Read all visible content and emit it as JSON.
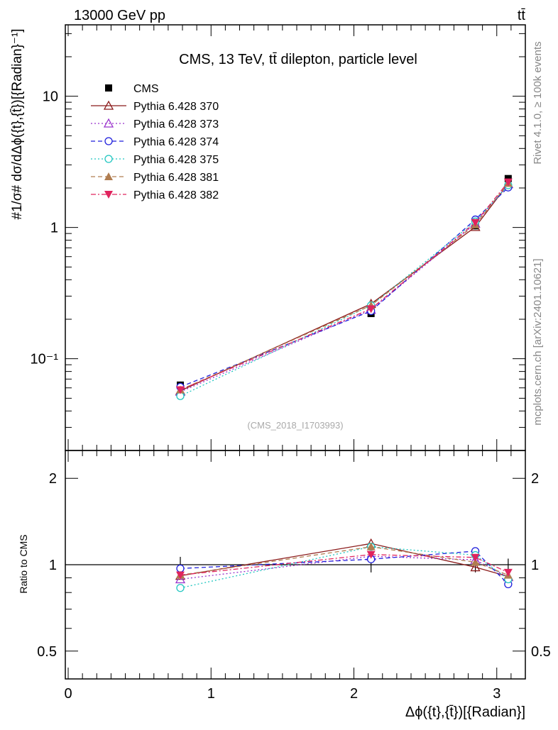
{
  "header": {
    "left": "13000 GeV pp",
    "right": "tt̄"
  },
  "side_labels": {
    "rivet": "Rivet 4.1.0, ≥ 100k events",
    "mcplots": "mcplots.cern.ch [arXiv:2401.10621]"
  },
  "chart_data": [
    {
      "type": "line",
      "yscale": "log",
      "title": "CMS, 13 TeV, tt̄ dilepton, particle level",
      "watermark": "(CMS_2018_I1703993)",
      "ylabel": "#1/σ# dσ/dΔϕ({t},{t̄})[{Radian}⁻¹]",
      "xlim": [
        -0.02,
        3.2
      ],
      "ylim": [
        0.02,
        35
      ],
      "yticks": [
        {
          "v": 10,
          "label": "10"
        },
        {
          "v": 1,
          "label": "1"
        },
        {
          "v": 0.1,
          "label": "10⁻¹"
        }
      ],
      "x": [
        0.785,
        2.12,
        2.85,
        3.08
      ],
      "series": [
        {
          "name": "CMS",
          "color": "#000000",
          "marker": "square",
          "dash": "none",
          "values": [
            0.063,
            0.221,
            1.03,
            2.36
          ],
          "err": [
            0.004,
            0.013,
            0.06,
            0.12
          ]
        },
        {
          "name": "Pythia 6.428 370",
          "color": "#8b1a1a",
          "marker": "triangle-open",
          "dash": "solid",
          "values": [
            0.057,
            0.262,
            1.01,
            2.15
          ]
        },
        {
          "name": "Pythia 6.428 373",
          "color": "#9932cc",
          "marker": "triangle-open",
          "dash": "dot",
          "values": [
            0.056,
            0.236,
            1.07,
            2.14
          ]
        },
        {
          "name": "Pythia 6.428 374",
          "color": "#1f1fdc",
          "marker": "circle-open",
          "dash": "dash",
          "values": [
            0.061,
            0.231,
            1.15,
            2.02
          ]
        },
        {
          "name": "Pythia 6.428 375",
          "color": "#20c6c0",
          "marker": "circle-open",
          "dash": "dot",
          "values": [
            0.052,
            0.255,
            1.11,
            2.1
          ]
        },
        {
          "name": "Pythia 6.428 381",
          "color": "#b07d50",
          "marker": "triangle-filled",
          "dash": "dash",
          "values": [
            0.058,
            0.255,
            1.05,
            2.17
          ]
        },
        {
          "name": "Pythia 6.428 382",
          "color": "#e0245e",
          "marker": "triangle-down-filled",
          "dash": "dashdot",
          "values": [
            0.058,
            0.24,
            1.09,
            2.22
          ]
        }
      ]
    },
    {
      "type": "line",
      "yscale": "log",
      "ylabel": "Ratio to CMS",
      "xlabel": "Δϕ({t},{t̄})[{Radian}]",
      "xlim": [
        -0.02,
        3.2
      ],
      "ylim": [
        0.4,
        2.5
      ],
      "yticks": [
        {
          "v": 2,
          "label": "2"
        },
        {
          "v": 1,
          "label": "1"
        },
        {
          "v": 0.5,
          "label": "0.5"
        }
      ],
      "xticks": [
        {
          "v": 0,
          "label": "0"
        },
        {
          "v": 1,
          "label": "1"
        },
        {
          "v": 2,
          "label": "2"
        },
        {
          "v": 3,
          "label": "3"
        }
      ],
      "x": [
        0.785,
        2.12,
        2.85,
        3.08
      ],
      "reference": 1,
      "band": [
        0.065,
        0.06,
        0.06,
        0.05
      ],
      "series": [
        {
          "name": "Pythia 6.428 370",
          "values": [
            0.915,
            1.185,
            0.98,
            0.91
          ]
        },
        {
          "name": "Pythia 6.428 373",
          "values": [
            0.89,
            1.07,
            1.04,
            0.905
          ]
        },
        {
          "name": "Pythia 6.428 374",
          "values": [
            0.97,
            1.045,
            1.115,
            0.855
          ]
        },
        {
          "name": "Pythia 6.428 375",
          "values": [
            0.83,
            1.155,
            1.08,
            0.89
          ]
        },
        {
          "name": "Pythia 6.428 381",
          "values": [
            0.92,
            1.155,
            1.02,
            0.92
          ]
        },
        {
          "name": "Pythia 6.428 382",
          "values": [
            0.92,
            1.085,
            1.06,
            0.94
          ]
        }
      ]
    }
  ]
}
